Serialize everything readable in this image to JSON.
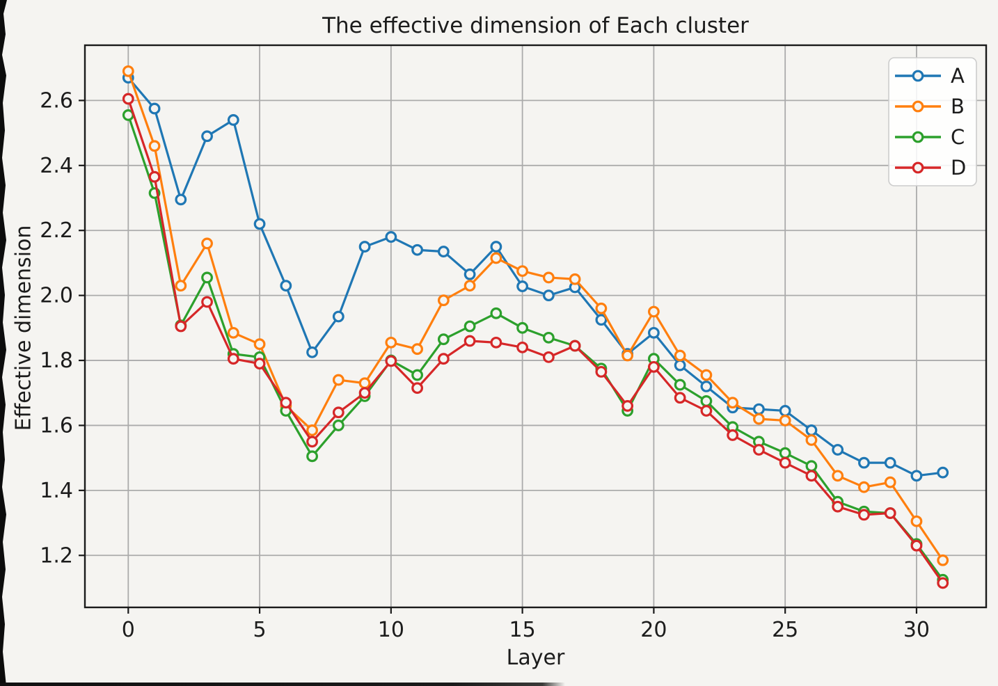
{
  "figure": {
    "background_color": "#f5f4f1",
    "axis_color": "#1a1a1a",
    "grid_color": "#ababab",
    "legend_border_color": "#cccccc"
  },
  "chart_data": {
    "type": "line",
    "title": "The effective dimension of Each cluster",
    "xlabel": "Layer",
    "ylabel": "Effective dimension",
    "grid": true,
    "legend_position": "upper right",
    "xlim": [
      -1.65,
      32.65
    ],
    "ylim": [
      1.04,
      2.77
    ],
    "xticks": [
      0,
      5,
      10,
      15,
      20,
      25,
      30
    ],
    "yticks": [
      1.2,
      1.4,
      1.6,
      1.8,
      2.0,
      2.2,
      2.4,
      2.6
    ],
    "x": [
      0,
      1,
      2,
      3,
      4,
      5,
      6,
      7,
      8,
      9,
      10,
      11,
      12,
      13,
      14,
      15,
      16,
      17,
      18,
      19,
      20,
      21,
      22,
      23,
      24,
      25,
      26,
      27,
      28,
      29,
      30,
      31
    ],
    "series": [
      {
        "name": "A",
        "color": "#1f77b4",
        "values": [
          2.67,
          2.575,
          2.295,
          2.49,
          2.54,
          2.22,
          2.03,
          1.825,
          1.935,
          2.15,
          2.18,
          2.14,
          2.135,
          2.065,
          2.15,
          2.028,
          2.0,
          2.025,
          1.925,
          1.82,
          1.885,
          1.785,
          1.72,
          1.655,
          1.65,
          1.645,
          1.585,
          1.525,
          1.485,
          1.485,
          1.445,
          1.455
        ]
      },
      {
        "name": "B",
        "color": "#ff7f0e",
        "values": [
          2.69,
          2.46,
          2.03,
          2.16,
          1.885,
          1.85,
          1.66,
          1.585,
          1.74,
          1.73,
          1.855,
          1.835,
          1.985,
          2.03,
          2.115,
          2.075,
          2.055,
          2.05,
          1.96,
          1.815,
          1.95,
          1.815,
          1.755,
          1.67,
          1.62,
          1.615,
          1.555,
          1.445,
          1.41,
          1.425,
          1.305,
          1.185
        ]
      },
      {
        "name": "C",
        "color": "#2ca02c",
        "values": [
          2.555,
          2.315,
          1.908,
          2.055,
          1.82,
          1.81,
          1.645,
          1.505,
          1.6,
          1.69,
          1.8,
          1.755,
          1.865,
          1.905,
          1.945,
          1.9,
          1.87,
          1.845,
          1.775,
          1.645,
          1.805,
          1.725,
          1.675,
          1.595,
          1.55,
          1.515,
          1.475,
          1.365,
          1.335,
          1.33,
          1.235,
          1.125
        ]
      },
      {
        "name": "D",
        "color": "#d62728",
        "values": [
          2.605,
          2.365,
          1.905,
          1.98,
          1.805,
          1.79,
          1.67,
          1.55,
          1.64,
          1.7,
          1.798,
          1.715,
          1.805,
          1.86,
          1.855,
          1.84,
          1.81,
          1.845,
          1.765,
          1.66,
          1.78,
          1.685,
          1.645,
          1.57,
          1.525,
          1.485,
          1.445,
          1.35,
          1.325,
          1.33,
          1.23,
          1.115
        ]
      }
    ]
  }
}
